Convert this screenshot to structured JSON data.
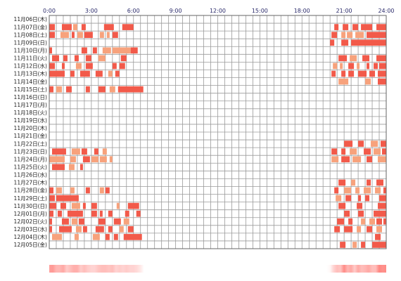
{
  "colors": {
    "gridline": "#9a9a9a",
    "frame": "#666666",
    "tick_text": "#2a2a6a",
    "bar_light": "#f7a27c",
    "bar_dark": "#f25a4a"
  },
  "chart_data": {
    "type": "heatmap",
    "title": "",
    "xlabel": "",
    "ylabel": "",
    "xlim": [
      0,
      24
    ],
    "x_ticks": [
      "0:00",
      "3:00",
      "6:00",
      "9:00",
      "12:00",
      "15:00",
      "18:00",
      "21:00",
      "24:00"
    ],
    "grid": true,
    "unit_hours": 0.5,
    "days": [
      {
        "label": "11月06日(木)",
        "segments": []
      },
      {
        "label": "11月07日(金)",
        "segments": [
          [
            0.0,
            0.4,
            "d"
          ],
          [
            0.9,
            1.6,
            "d"
          ],
          [
            1.7,
            2.0,
            "l"
          ],
          [
            2.3,
            2.6,
            "d"
          ],
          [
            3.9,
            4.6,
            "d"
          ],
          [
            5.2,
            6.0,
            "d"
          ],
          [
            20.3,
            20.6,
            "d"
          ],
          [
            20.9,
            21.3,
            "d"
          ],
          [
            21.6,
            22.0,
            "d"
          ],
          [
            22.2,
            23.0,
            "d"
          ],
          [
            23.3,
            24.0,
            "d"
          ]
        ]
      },
      {
        "label": "11月08日(土)",
        "segments": [
          [
            0.0,
            0.4,
            "d"
          ],
          [
            0.8,
            1.4,
            "l"
          ],
          [
            1.6,
            1.8,
            "d"
          ],
          [
            2.0,
            2.4,
            "l"
          ],
          [
            2.5,
            3.1,
            "d"
          ],
          [
            3.6,
            3.9,
            "l"
          ],
          [
            4.1,
            4.3,
            "l"
          ],
          [
            4.5,
            4.9,
            "d"
          ],
          [
            20.1,
            20.5,
            "d"
          ],
          [
            20.8,
            21.1,
            "l"
          ],
          [
            21.2,
            21.6,
            "l"
          ],
          [
            21.8,
            22.4,
            "l"
          ],
          [
            22.6,
            24.0,
            "d"
          ]
        ]
      },
      {
        "label": "11月09日(日)",
        "segments": [
          [
            20.0,
            20.3,
            "d"
          ],
          [
            20.8,
            21.3,
            "d"
          ],
          [
            21.5,
            24.0,
            "d"
          ]
        ]
      },
      {
        "label": "11月10日(月)",
        "segments": [
          [
            0.0,
            0.2,
            "d"
          ],
          [
            2.3,
            2.7,
            "d"
          ],
          [
            3.1,
            3.4,
            "d"
          ],
          [
            3.8,
            4.4,
            "l"
          ],
          [
            4.5,
            5.8,
            "l"
          ],
          [
            5.8,
            6.3,
            "d"
          ]
        ]
      },
      {
        "label": "11月11日(火)",
        "segments": [
          [
            0.2,
            0.7,
            "d"
          ],
          [
            1.0,
            1.3,
            "d"
          ],
          [
            1.8,
            2.1,
            "d"
          ],
          [
            2.6,
            3.0,
            "d"
          ],
          [
            3.5,
            4.0,
            "l"
          ],
          [
            5.1,
            5.5,
            "d"
          ],
          [
            20.6,
            21.2,
            "d"
          ],
          [
            21.4,
            21.9,
            "l"
          ],
          [
            22.3,
            22.8,
            "d"
          ],
          [
            23.3,
            24.0,
            "d"
          ]
        ]
      },
      {
        "label": "11月12日(水)",
        "segments": [
          [
            0.0,
            0.4,
            "d"
          ],
          [
            0.9,
            1.1,
            "d"
          ],
          [
            1.9,
            2.3,
            "l"
          ],
          [
            2.6,
            3.1,
            "d"
          ],
          [
            4.5,
            4.8,
            "d"
          ],
          [
            5.0,
            5.4,
            "d"
          ],
          [
            20.2,
            20.5,
            "l"
          ],
          [
            20.7,
            20.9,
            "l"
          ],
          [
            21.3,
            21.7,
            "d"
          ],
          [
            21.9,
            22.1,
            "l"
          ],
          [
            22.6,
            22.8,
            "d"
          ],
          [
            23.1,
            23.4,
            "d"
          ],
          [
            23.5,
            24.0,
            "d"
          ]
        ]
      },
      {
        "label": "11月13日(木)",
        "segments": [
          [
            0.0,
            1.1,
            "d"
          ],
          [
            1.5,
            1.8,
            "d"
          ],
          [
            2.2,
            2.9,
            "d"
          ],
          [
            3.3,
            3.8,
            "d"
          ],
          [
            4.2,
            4.5,
            "l"
          ],
          [
            4.7,
            5.0,
            "d"
          ],
          [
            20.1,
            20.4,
            "d"
          ],
          [
            20.8,
            21.1,
            "d"
          ],
          [
            21.3,
            21.7,
            "d"
          ],
          [
            22.0,
            22.6,
            "d"
          ],
          [
            22.8,
            23.2,
            "d"
          ],
          [
            23.4,
            24.0,
            "d"
          ]
        ]
      },
      {
        "label": "11月14日(金)",
        "segments": [
          [
            20.6,
            21.3,
            "l"
          ],
          [
            22.5,
            22.9,
            "l"
          ],
          [
            23.4,
            24.0,
            "d"
          ]
        ]
      },
      {
        "label": "11月15日(土)",
        "segments": [
          [
            0.0,
            0.3,
            "d"
          ],
          [
            0.5,
            0.9,
            "l"
          ],
          [
            1.2,
            1.6,
            "d"
          ],
          [
            2.6,
            2.9,
            "d"
          ],
          [
            3.5,
            4.0,
            "d"
          ],
          [
            4.3,
            4.7,
            "l"
          ],
          [
            4.9,
            6.7,
            "d"
          ]
        ]
      },
      {
        "label": "11月16日(日)",
        "segments": []
      },
      {
        "label": "11月17日(月)",
        "segments": []
      },
      {
        "label": "11月18日(火)",
        "segments": []
      },
      {
        "label": "11月19日(水)",
        "segments": []
      },
      {
        "label": "11月20日(木)",
        "segments": []
      },
      {
        "label": "11月21日(金)",
        "segments": []
      },
      {
        "label": "11月22日(土)",
        "segments": [
          [
            21.0,
            21.6,
            "d"
          ],
          [
            22.0,
            22.4,
            "d"
          ],
          [
            22.9,
            23.4,
            "l"
          ],
          [
            23.6,
            24.0,
            "d"
          ]
        ]
      },
      {
        "label": "11月23日(日)",
        "segments": [
          [
            0.2,
            1.2,
            "d"
          ],
          [
            1.6,
            2.2,
            "l"
          ],
          [
            2.3,
            2.7,
            "d"
          ],
          [
            3.2,
            3.5,
            "d"
          ],
          [
            3.8,
            4.1,
            "l"
          ],
          [
            20.1,
            20.5,
            "d"
          ],
          [
            20.8,
            21.1,
            "d"
          ],
          [
            21.4,
            21.9,
            "l"
          ],
          [
            22.4,
            22.9,
            "d"
          ],
          [
            23.1,
            23.6,
            "l"
          ],
          [
            23.7,
            24.0,
            "d"
          ]
        ]
      },
      {
        "label": "11月24日(月)",
        "segments": [
          [
            0.0,
            1.1,
            "l"
          ],
          [
            1.5,
            1.9,
            "l"
          ],
          [
            2.4,
            2.9,
            "d"
          ],
          [
            3.0,
            3.5,
            "l"
          ],
          [
            3.6,
            4.1,
            "l"
          ],
          [
            4.3,
            4.5,
            "l"
          ],
          [
            20.1,
            20.6,
            "l"
          ],
          [
            20.8,
            21.4,
            "d"
          ],
          [
            21.6,
            22.2,
            "l"
          ],
          [
            22.6,
            23.0,
            "d"
          ],
          [
            23.4,
            24.0,
            "l"
          ]
        ]
      },
      {
        "label": "11月25日(火)",
        "segments": [
          [
            0.2,
            1.1,
            "d"
          ],
          [
            1.4,
            1.8,
            "l"
          ],
          [
            2.2,
            2.4,
            "d"
          ]
        ]
      },
      {
        "label": "11月26日(水)",
        "segments": []
      },
      {
        "label": "11月27日(木)",
        "segments": [
          [
            20.6,
            21.1,
            "d"
          ],
          [
            21.5,
            21.8,
            "l"
          ],
          [
            22.6,
            22.9,
            "d"
          ],
          [
            23.3,
            23.8,
            "d"
          ]
        ]
      },
      {
        "label": "11月28日(金)",
        "segments": [
          [
            0.0,
            0.3,
            "d"
          ],
          [
            0.5,
            0.9,
            "l"
          ],
          [
            1.5,
            1.8,
            "l"
          ],
          [
            2.6,
            2.9,
            "d"
          ],
          [
            3.6,
            3.9,
            "l"
          ],
          [
            4.0,
            4.3,
            "d"
          ],
          [
            20.3,
            20.6,
            "d"
          ],
          [
            21.0,
            21.5,
            "l"
          ],
          [
            21.8,
            22.1,
            "l"
          ],
          [
            22.4,
            22.9,
            "l"
          ],
          [
            23.2,
            23.6,
            "l"
          ],
          [
            23.8,
            24.0,
            "d"
          ]
        ]
      },
      {
        "label": "11月29日(土)",
        "segments": [
          [
            0.0,
            0.4,
            "d"
          ],
          [
            0.5,
            2.1,
            "d"
          ],
          [
            20.4,
            20.8,
            "l"
          ],
          [
            21.1,
            21.5,
            "d"
          ],
          [
            22.0,
            22.2,
            "d"
          ],
          [
            22.5,
            22.8,
            "d"
          ],
          [
            23.5,
            24.0,
            "d"
          ]
        ]
      },
      {
        "label": "11月30日(日)",
        "segments": [
          [
            0.0,
            0.5,
            "d"
          ],
          [
            0.8,
            1.2,
            "d"
          ],
          [
            1.6,
            2.2,
            "l"
          ],
          [
            2.4,
            2.6,
            "d"
          ],
          [
            3.0,
            3.4,
            "d"
          ],
          [
            4.8,
            5.0,
            "l"
          ],
          [
            5.6,
            6.4,
            "d"
          ],
          [
            20.6,
            21.1,
            "d"
          ],
          [
            21.9,
            22.3,
            "d"
          ],
          [
            23.4,
            24.0,
            "d"
          ]
        ]
      },
      {
        "label": "12月01日(月)",
        "segments": [
          [
            0.0,
            0.3,
            "d"
          ],
          [
            0.6,
            0.9,
            "d"
          ],
          [
            1.3,
            2.4,
            "d"
          ],
          [
            3.0,
            3.4,
            "d"
          ],
          [
            3.6,
            3.8,
            "d"
          ],
          [
            4.2,
            4.5,
            "d"
          ],
          [
            5.4,
            5.7,
            "d"
          ],
          [
            6.2,
            6.5,
            "d"
          ],
          [
            21.0,
            21.4,
            "d"
          ],
          [
            22.0,
            22.4,
            "d"
          ],
          [
            23.1,
            24.0,
            "d"
          ]
        ]
      },
      {
        "label": "12月02日(火)",
        "segments": [
          [
            0.0,
            0.2,
            "d"
          ],
          [
            0.9,
            1.4,
            "d"
          ],
          [
            1.6,
            2.0,
            "l"
          ],
          [
            2.1,
            2.5,
            "d"
          ],
          [
            3.5,
            4.0,
            "d"
          ],
          [
            4.6,
            5.1,
            "d"
          ],
          [
            5.3,
            5.7,
            "l"
          ],
          [
            20.5,
            21.0,
            "d"
          ],
          [
            21.3,
            21.6,
            "d"
          ],
          [
            22.2,
            22.5,
            "l"
          ],
          [
            22.8,
            23.2,
            "l"
          ],
          [
            23.3,
            23.7,
            "d"
          ],
          [
            23.8,
            24.0,
            "d"
          ]
        ]
      },
      {
        "label": "12月03日(水)",
        "segments": [
          [
            0.0,
            0.2,
            "d"
          ],
          [
            0.7,
            1.6,
            "d"
          ],
          [
            1.9,
            2.3,
            "l"
          ],
          [
            2.4,
            2.7,
            "d"
          ],
          [
            3.3,
            3.9,
            "d"
          ],
          [
            4.2,
            4.5,
            "d"
          ],
          [
            5.0,
            5.3,
            "l"
          ],
          [
            5.6,
            6.0,
            "d"
          ],
          [
            20.3,
            20.7,
            "d"
          ],
          [
            21.0,
            21.6,
            "d"
          ],
          [
            21.9,
            22.2,
            "l"
          ],
          [
            22.6,
            23.0,
            "d"
          ],
          [
            23.3,
            23.7,
            "l"
          ]
        ]
      },
      {
        "label": "12月04日(木)",
        "segments": [
          [
            0.2,
            0.9,
            "l"
          ],
          [
            1.8,
            2.1,
            "l"
          ],
          [
            3.1,
            3.6,
            "l"
          ],
          [
            4.0,
            4.3,
            "d"
          ],
          [
            4.6,
            4.9,
            "d"
          ],
          [
            5.3,
            6.6,
            "d"
          ],
          [
            23.2,
            23.6,
            "d"
          ]
        ]
      },
      {
        "label": "12月05日(金)",
        "segments": [
          [
            20.7,
            21.1,
            "d"
          ],
          [
            21.6,
            21.9,
            "l"
          ],
          [
            22.2,
            22.5,
            "d"
          ],
          [
            23.0,
            24.0,
            "d"
          ]
        ]
      }
    ]
  }
}
